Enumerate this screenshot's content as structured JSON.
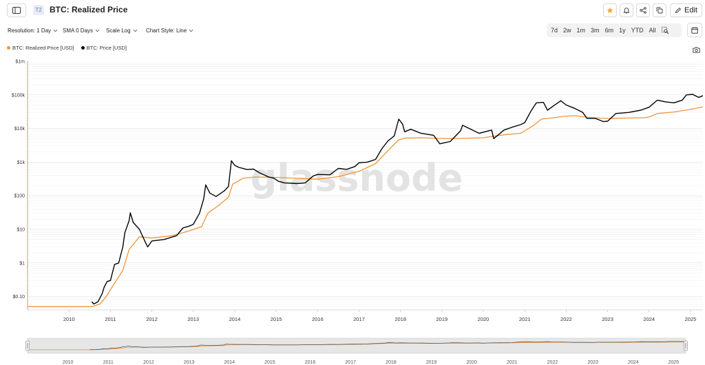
{
  "header": {
    "tier_badge": "T2",
    "title": "BTC: Realized Price",
    "edit_label": "Edit"
  },
  "controls": {
    "resolution": "Resolution: 1 Day",
    "sma": "SMA 0 Days",
    "scale": "Scale Log",
    "chart_style": "Chart Style: Line"
  },
  "ranges": [
    "7d",
    "2w",
    "1m",
    "3m",
    "6m",
    "1y",
    "YTD",
    "All"
  ],
  "watermark": "glassnode",
  "colors": {
    "realized": "#f09436",
    "price": "#000000",
    "star": "#f5a623",
    "grid": "#ececec"
  },
  "chart_data": {
    "type": "line",
    "title": "BTC: Realized Price",
    "yscale": "log",
    "ylim": [
      0.04,
      1000000
    ],
    "xlim": [
      2009.0,
      2025.3
    ],
    "yticks": [
      {
        "v": 1000000,
        "label": "$1m"
      },
      {
        "v": 100000,
        "label": "$100k"
      },
      {
        "v": 10000,
        "label": "$10k"
      },
      {
        "v": 1000,
        "label": "$1k"
      },
      {
        "v": 100,
        "label": "$100"
      },
      {
        "v": 10,
        "label": "$10"
      },
      {
        "v": 1,
        "label": "$1"
      },
      {
        "v": 0.1,
        "label": "$0.10"
      }
    ],
    "xticks": [
      "2010",
      "2011",
      "2012",
      "2013",
      "2014",
      "2015",
      "2016",
      "2017",
      "2018",
      "2019",
      "2020",
      "2021",
      "2022",
      "2023",
      "2024",
      "2025"
    ],
    "legend_position": "top-left",
    "series": [
      {
        "name": "BTC: Realized Price [USD]",
        "x": [
          2009.0,
          2010.55,
          2010.75,
          2010.9,
          2011.05,
          2011.3,
          2011.45,
          2011.7,
          2012.0,
          2012.5,
          2012.9,
          2013.2,
          2013.35,
          2013.6,
          2013.85,
          2013.95,
          2014.2,
          2014.5,
          2015.0,
          2015.5,
          2016.0,
          2016.5,
          2017.0,
          2017.4,
          2017.7,
          2017.95,
          2018.1,
          2018.5,
          2018.9,
          2019.2,
          2019.5,
          2020.0,
          2020.5,
          2020.9,
          2021.0,
          2021.2,
          2021.4,
          2021.7,
          2021.95,
          2022.2,
          2022.45,
          2022.9,
          2023.0,
          2023.5,
          2023.9,
          2024.0,
          2024.2,
          2024.6,
          2025.0,
          2025.3
        ],
        "y": [
          0.05,
          0.05,
          0.06,
          0.1,
          0.2,
          0.6,
          2.5,
          6,
          5.5,
          6.5,
          9,
          12,
          30,
          50,
          90,
          220,
          330,
          360,
          350,
          330,
          310,
          370,
          530,
          900,
          2200,
          4500,
          5200,
          5300,
          5100,
          5000,
          5100,
          5300,
          6500,
          7200,
          8500,
          12000,
          19000,
          21000,
          23000,
          24000,
          22000,
          20000,
          20000,
          20500,
          21000,
          22000,
          28000,
          31000,
          37000,
          44000
        ]
      },
      {
        "name": "BTC: Price [USD]",
        "x": [
          2010.55,
          2010.6,
          2010.7,
          2010.8,
          2010.85,
          2010.92,
          2011.0,
          2011.1,
          2011.2,
          2011.3,
          2011.35,
          2011.45,
          2011.48,
          2011.55,
          2011.7,
          2011.85,
          2011.9,
          2012.0,
          2012.3,
          2012.6,
          2012.75,
          2012.9,
          2013.0,
          2013.15,
          2013.25,
          2013.3,
          2013.4,
          2013.55,
          2013.75,
          2013.85,
          2013.92,
          2014.0,
          2014.1,
          2014.3,
          2014.45,
          2014.6,
          2014.8,
          2014.95,
          2015.05,
          2015.2,
          2015.5,
          2015.7,
          2015.9,
          2016.0,
          2016.3,
          2016.5,
          2016.7,
          2016.9,
          2017.0,
          2017.2,
          2017.4,
          2017.55,
          2017.7,
          2017.85,
          2017.96,
          2018.05,
          2018.1,
          2018.25,
          2018.5,
          2018.8,
          2018.95,
          2019.2,
          2019.45,
          2019.5,
          2019.7,
          2019.9,
          2020.2,
          2020.25,
          2020.5,
          2020.7,
          2020.9,
          2021.0,
          2021.15,
          2021.28,
          2021.45,
          2021.55,
          2021.7,
          2021.87,
          2022.0,
          2022.2,
          2022.4,
          2022.5,
          2022.7,
          2022.9,
          2023.0,
          2023.2,
          2023.5,
          2023.8,
          2024.0,
          2024.2,
          2024.4,
          2024.6,
          2024.8,
          2024.9,
          2025.05,
          2025.2,
          2025.3
        ],
        "y": [
          0.07,
          0.06,
          0.07,
          0.12,
          0.19,
          0.28,
          0.3,
          0.9,
          1.0,
          3,
          8,
          18,
          31,
          16,
          10,
          4,
          3,
          4.5,
          5,
          6.5,
          11,
          12.5,
          14,
          30,
          80,
          210,
          120,
          95,
          140,
          190,
          1100,
          800,
          700,
          600,
          620,
          480,
          370,
          330,
          270,
          240,
          230,
          240,
          390,
          430,
          420,
          650,
          610,
          740,
          960,
          1000,
          1200,
          2500,
          4300,
          6000,
          19000,
          13500,
          8000,
          9500,
          7200,
          6300,
          3500,
          4100,
          8500,
          12500,
          9500,
          7200,
          9000,
          5000,
          9000,
          11000,
          13000,
          15000,
          33000,
          58000,
          60000,
          35000,
          48000,
          67000,
          50000,
          40000,
          30000,
          20000,
          20000,
          16000,
          16500,
          28000,
          30000,
          35000,
          43000,
          70000,
          62000,
          58000,
          70000,
          100000,
          104000,
          84000,
          95000
        ]
      }
    ],
    "navigator_xticks": [
      "2010",
      "2011",
      "2012",
      "2013",
      "2014",
      "2015",
      "2016",
      "2017",
      "2018",
      "2019",
      "2020",
      "2021",
      "2022",
      "2023",
      "2024",
      "2025"
    ]
  }
}
